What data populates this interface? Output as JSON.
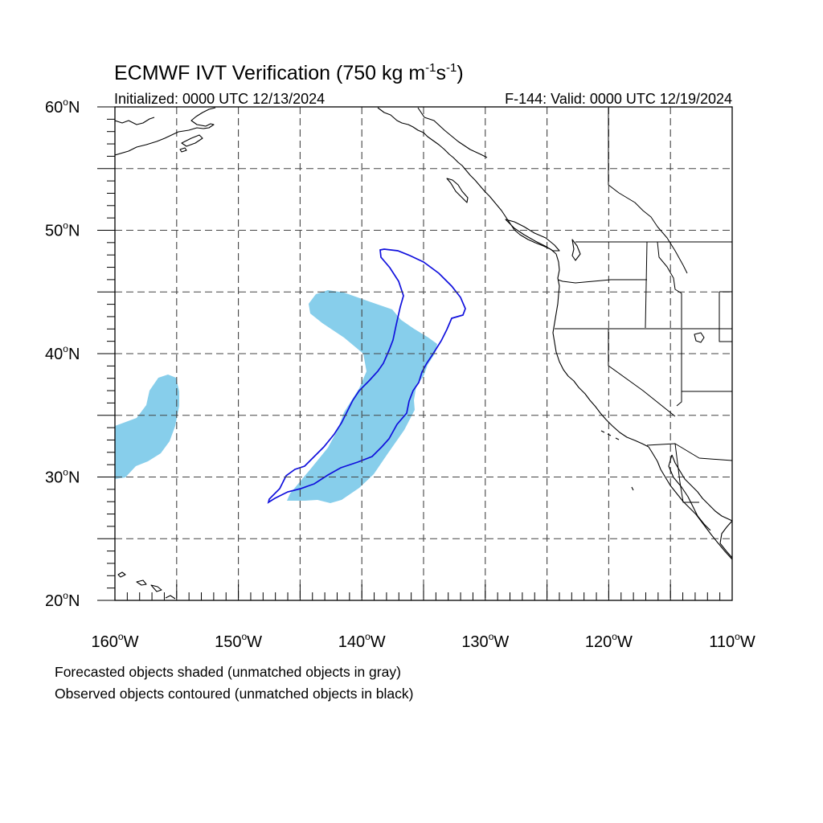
{
  "title": {
    "prefix": "ECMWF IVT Verification (750 kg m",
    "exp1": "-1",
    "mid": "s",
    "exp2": "-1",
    "suffix": ")"
  },
  "init_label": "Initialized: 0000 UTC 12/13/2024",
  "valid_label": "F-144: Valid: 0000 UTC 12/19/2024",
  "captions": {
    "line1": "Forecasted objects shaded (unmatched objects in gray)",
    "line2": "Observed objects contoured (unmatched objects in black)"
  },
  "map": {
    "projection": "cylindrical-equidistant",
    "lon_range": [
      -160,
      -110
    ],
    "lat_range": [
      20,
      60
    ],
    "gridlines": "dashed, every 5 degrees",
    "lat_ticks": [
      {
        "lat": 60,
        "label": "60",
        "hemi": "N"
      },
      {
        "lat": 50,
        "label": "50",
        "hemi": "N"
      },
      {
        "lat": 40,
        "label": "40",
        "hemi": "N"
      },
      {
        "lat": 30,
        "label": "30",
        "hemi": "N"
      },
      {
        "lat": 20,
        "label": "20",
        "hemi": "N"
      }
    ],
    "lon_ticks": [
      {
        "lon": -160,
        "label": "160",
        "hemi": "W"
      },
      {
        "lon": -150,
        "label": "150",
        "hemi": "W"
      },
      {
        "lon": -140,
        "label": "140",
        "hemi": "W"
      },
      {
        "lon": -130,
        "label": "130",
        "hemi": "W"
      },
      {
        "lon": -120,
        "label": "120",
        "hemi": "W"
      },
      {
        "lon": -110,
        "label": "110",
        "hemi": "W"
      }
    ],
    "colors": {
      "forecast_fill": "#87ceeb",
      "observed_contour": "#1010dd",
      "coastline": "#000000",
      "grid": "#444444"
    }
  }
}
